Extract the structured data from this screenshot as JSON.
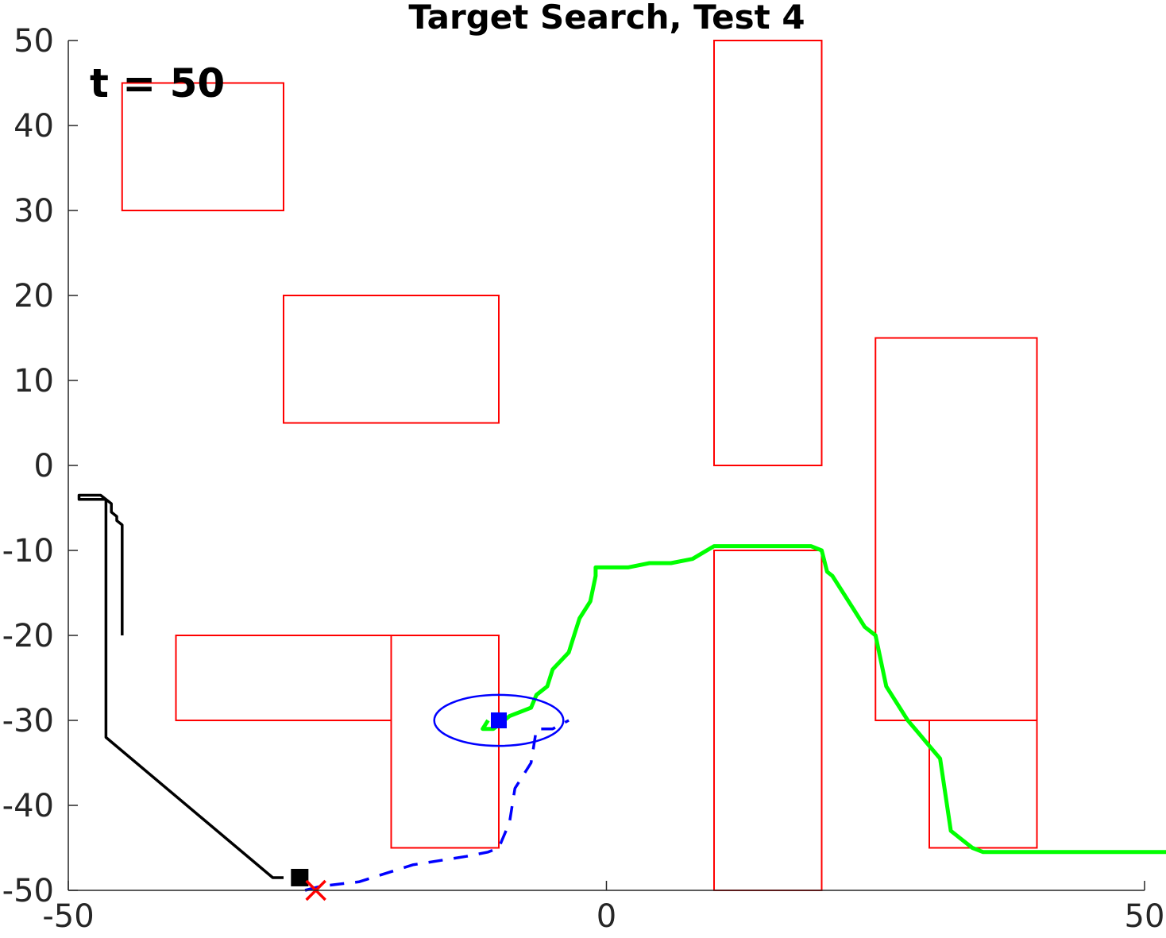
{
  "chart_data": {
    "type": "line",
    "title": "Target Search, Test 4",
    "annotation": "t = 50",
    "xlabel": "",
    "ylabel": "",
    "xlim": [
      -50,
      50
    ],
    "ylim": [
      -50,
      50
    ],
    "xticks": [
      -50,
      0,
      50
    ],
    "yticks": [
      -50,
      -40,
      -30,
      -20,
      -10,
      0,
      10,
      20,
      30,
      40,
      50
    ],
    "grid": false,
    "colors": {
      "obstacle": "#ff0000",
      "black_path": "#000000",
      "blue_path": "#0000ff",
      "green_path": "#00ff00",
      "target": "#ff0000",
      "axis": "#262626"
    },
    "obstacles": [
      {
        "x": [
          -45,
          -30
        ],
        "y": [
          30,
          45
        ]
      },
      {
        "x": [
          -30,
          -10
        ],
        "y": [
          5,
          20
        ]
      },
      {
        "x": [
          10,
          20
        ],
        "y": [
          0,
          50
        ]
      },
      {
        "x": [
          25,
          40
        ],
        "y": [
          -30,
          15
        ]
      },
      {
        "x": [
          -40,
          -20
        ],
        "y": [
          -30,
          -20
        ]
      },
      {
        "x": [
          -20,
          -10
        ],
        "y": [
          -45,
          -20
        ]
      },
      {
        "x": [
          10,
          20
        ],
        "y": [
          -50,
          -10
        ]
      },
      {
        "x": [
          30,
          40
        ],
        "y": [
          -45,
          -30
        ]
      }
    ],
    "series": [
      {
        "style": "solid-black",
        "x": [
          -45,
          -45,
          -45.5,
          -45.5,
          -46,
          -46,
          -46.5,
          -47,
          -48,
          -49,
          -49,
          -48.5,
          -46.5,
          -46.5,
          -46.5,
          -46.5,
          -31,
          -30
        ],
        "y": [
          -20,
          -7,
          -6.5,
          -6,
          -5.5,
          -4.5,
          -4,
          -3.5,
          -3.5,
          -3.5,
          -4,
          -4,
          -4,
          -10,
          -20,
          -32,
          -48.5,
          -48.5
        ]
      },
      {
        "style": "dashed-blue",
        "x": [
          -28,
          -26.5,
          -23,
          -18,
          -13,
          -11,
          -10,
          -9,
          -8.5,
          -7,
          -6.5,
          -5,
          -3.5
        ],
        "y": [
          -50,
          -49.5,
          -49,
          -47,
          -46,
          -45.5,
          -45,
          -42,
          -38,
          -35,
          -31,
          -31,
          -30
        ]
      },
      {
        "style": "solid-green",
        "x": [
          -11,
          -11.5,
          -11.5,
          -10.5,
          -10,
          -9.5,
          -9,
          -8,
          -7,
          -6.5,
          -5.5,
          -5,
          -3.5,
          -3,
          -2.5,
          -1.5,
          -1,
          -1,
          0,
          1,
          2,
          4,
          6,
          8,
          10,
          12,
          14,
          16,
          18,
          19,
          20,
          20.5,
          21,
          22,
          23,
          24,
          25,
          26,
          28,
          29,
          30,
          31,
          32,
          33,
          34,
          35,
          36,
          37,
          38,
          39,
          40,
          41,
          42,
          43,
          44,
          45,
          46,
          47,
          48,
          49,
          50,
          51,
          52,
          53,
          54,
          55,
          56,
          57,
          58,
          59
        ],
        "y": [
          -30,
          -31,
          -31,
          -31,
          -30.5,
          -30,
          -29.5,
          -29,
          -28.5,
          -27,
          -26,
          -24,
          -22,
          -20,
          -18,
          -16,
          -13,
          -12,
          -12,
          -12,
          -12,
          -11.5,
          -11.5,
          -11,
          -9.5,
          -9.5,
          -9.5,
          -9.5,
          -9.5,
          -9.5,
          -10,
          -12.5,
          -13,
          -15,
          -17,
          -19,
          -20,
          -26,
          -30,
          -31.5,
          -33,
          -34.5,
          -43,
          -44,
          -45,
          -45.5,
          -45.5,
          -45.5,
          -45.5,
          -45.5,
          -45.5,
          -45.5,
          -45.5,
          -45.5,
          -45.5,
          -45.5,
          -45.5,
          -45.5,
          -45.5,
          -45.5,
          -45.5,
          -45.5,
          -45.5,
          -45.5,
          -45.5,
          -45.5,
          -45.5,
          -45.5,
          -45.5,
          -45.5
        ]
      }
    ],
    "markers": {
      "black_square": {
        "x": -28.5,
        "y": -48.5
      },
      "blue_square": {
        "x": -10,
        "y": -30
      },
      "red_x": {
        "x": -27,
        "y": -50
      },
      "blue_circle": {
        "x": -10,
        "y": -30,
        "rx": 6,
        "ry": 3
      }
    }
  }
}
